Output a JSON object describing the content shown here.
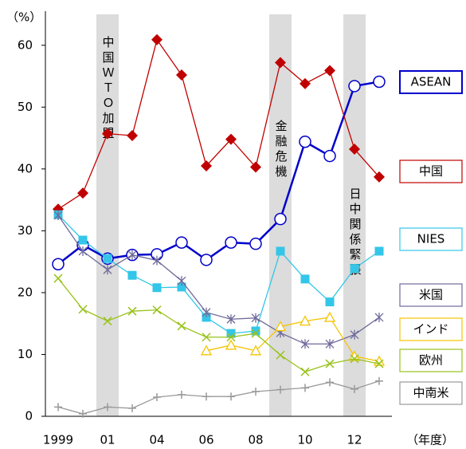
{
  "chart_data": {
    "type": "line",
    "y_label": "（%）",
    "x_label": "（年度）",
    "categories": [
      "1999",
      null,
      "01",
      null,
      "04",
      null,
      "06",
      null,
      "08",
      null,
      "10",
      null,
      "12",
      null
    ],
    "ylim": [
      0,
      65
    ],
    "yticks": [
      0,
      10,
      20,
      30,
      40,
      50,
      60
    ],
    "annotations": [
      {
        "text": "中国ＷＴＯ加盟",
        "x": 2
      },
      {
        "text": "金融危機",
        "x": 9
      },
      {
        "text": "日中関係緊張",
        "x": 12
      }
    ],
    "series": [
      {
        "name": "ASEAN",
        "color": "#0000cc",
        "marker": "circle",
        "values": [
          24.6,
          27.7,
          25.5,
          26.1,
          26.2,
          28.1,
          25.3,
          28.1,
          27.9,
          31.9,
          44.4,
          42.1,
          53.4,
          54.1
        ]
      },
      {
        "name": "中国",
        "color": "#c00000",
        "marker": "diamond",
        "values": [
          33.5,
          36.1,
          45.7,
          45.4,
          60.9,
          55.2,
          40.5,
          44.8,
          40.3,
          57.2,
          53.8,
          55.9,
          43.2,
          38.7
        ]
      },
      {
        "name": "NIES",
        "color": "#33c6e8",
        "marker": "square",
        "values": [
          32.6,
          28.5,
          25.5,
          22.8,
          20.8,
          20.9,
          16.0,
          13.4,
          13.8,
          26.7,
          22.2,
          18.5,
          23.9,
          26.7
        ]
      },
      {
        "name": "米国",
        "color": "#6f6a9a",
        "marker": "asterisk",
        "values": [
          32.5,
          26.7,
          23.7,
          26.1,
          25.2,
          21.9,
          16.8,
          15.7,
          15.9,
          13.5,
          11.7,
          11.7,
          13.2,
          16.0
        ]
      },
      {
        "name": "インド",
        "color": "#f5c400",
        "marker": "triangle",
        "values": [
          null,
          null,
          null,
          null,
          null,
          null,
          10.6,
          11.5,
          10.6,
          14.5,
          15.4,
          16.0,
          9.7,
          8.9
        ]
      },
      {
        "name": "欧州",
        "color": "#99c21a",
        "marker": "x",
        "values": [
          22.3,
          17.3,
          15.4,
          17.0,
          17.2,
          14.6,
          12.8,
          12.8,
          13.4,
          9.9,
          7.2,
          8.5,
          9.3,
          8.5
        ]
      },
      {
        "name": "中南米",
        "color": "#999999",
        "marker": "plus",
        "values": [
          1.5,
          0.4,
          1.5,
          1.3,
          3.1,
          3.5,
          3.2,
          3.2,
          4.0,
          4.3,
          4.6,
          5.5,
          4.4,
          5.7
        ]
      }
    ]
  }
}
